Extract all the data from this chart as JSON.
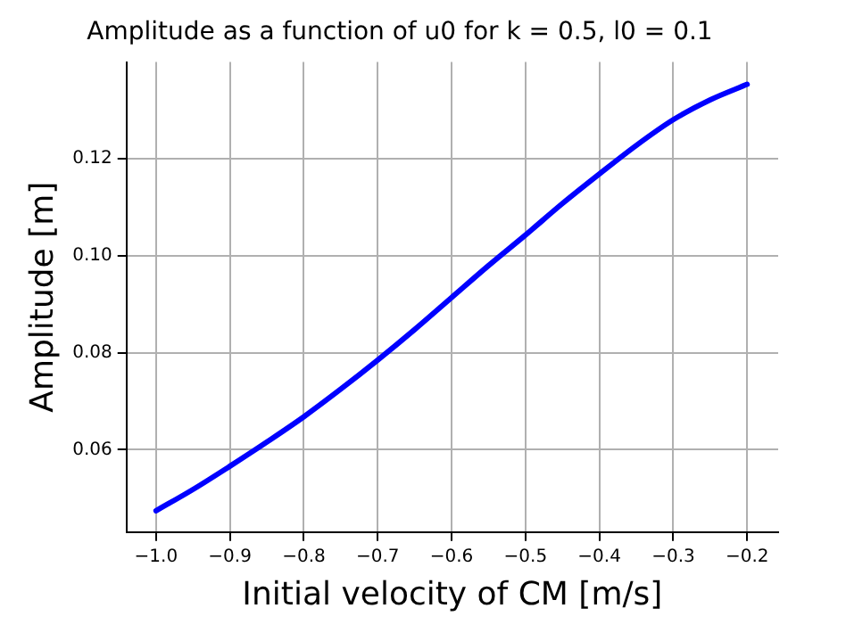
{
  "chart_data": {
    "type": "line",
    "title": "Amplitude as a function of u0 for k = 0.5, l0 = 0.1",
    "xlabel": "Initial velocity of CM [m/s]",
    "ylabel": "Amplitude [m]",
    "x": [
      -1.0,
      -0.95,
      -0.9,
      -0.85,
      -0.8,
      -0.75,
      -0.7,
      -0.65,
      -0.6,
      -0.55,
      -0.5,
      -0.45,
      -0.4,
      -0.35,
      -0.3,
      -0.25,
      -0.2
    ],
    "series": [
      {
        "color": "#0000ff",
        "values": [
          0.0474,
          0.0518,
          0.0566,
          0.0616,
          0.0668,
          0.0725,
          0.0785,
          0.0848,
          0.0914,
          0.098,
          0.1043,
          0.1108,
          0.1169,
          0.1228,
          0.1281,
          0.1322,
          0.1354
        ]
      }
    ],
    "xlim": [
      -1.04,
      -0.158
    ],
    "ylim": [
      0.043,
      0.14
    ],
    "xticks": [
      {
        "value": -1.0,
        "label": "−1.0"
      },
      {
        "value": -0.9,
        "label": "−0.9"
      },
      {
        "value": -0.8,
        "label": "−0.8"
      },
      {
        "value": -0.7,
        "label": "−0.7"
      },
      {
        "value": -0.6,
        "label": "−0.6"
      },
      {
        "value": -0.5,
        "label": "−0.5"
      },
      {
        "value": -0.4,
        "label": "−0.4"
      },
      {
        "value": -0.3,
        "label": "−0.3"
      },
      {
        "value": -0.2,
        "label": "−0.2"
      }
    ],
    "yticks": [
      {
        "value": 0.06,
        "label": "0.06"
      },
      {
        "value": 0.08,
        "label": "0.08"
      },
      {
        "value": 0.1,
        "label": "0.10"
      },
      {
        "value": 0.12,
        "label": "0.12"
      }
    ],
    "grid": true,
    "marker": "none",
    "line_style": "solid"
  }
}
